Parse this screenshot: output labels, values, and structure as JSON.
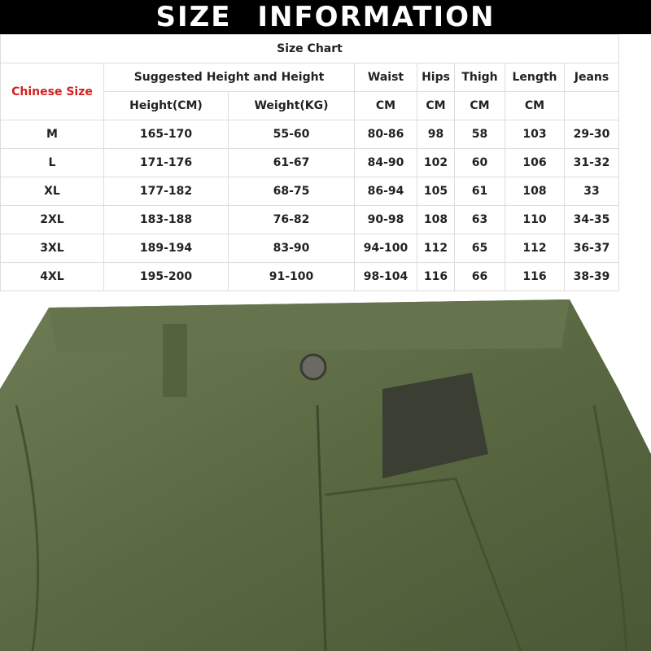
{
  "banner": {
    "title": "SIZE INFORMATION"
  },
  "table": {
    "title": "Size Chart",
    "size_header": "Chinese Size",
    "group_header": "Suggested Height and Height",
    "columns": [
      "Waist",
      "Hips",
      "Thigh",
      "Length",
      "Jeans"
    ],
    "units": [
      "Height(CM)",
      "Weight(KG)",
      "CM",
      "CM",
      "CM",
      "CM",
      ""
    ],
    "rows": [
      [
        "M",
        "165-170",
        "55-60",
        "80-86",
        "98",
        "58",
        "103",
        "29-30"
      ],
      [
        "L",
        "171-176",
        "61-67",
        "84-90",
        "102",
        "60",
        "106",
        "31-32"
      ],
      [
        "XL",
        "177-182",
        "68-75",
        "86-94",
        "105",
        "61",
        "108",
        "33"
      ],
      [
        "2XL",
        "183-188",
        "76-82",
        "90-98",
        "108",
        "63",
        "110",
        "34-35"
      ],
      [
        "3XL",
        "189-194",
        "83-90",
        "94-100",
        "112",
        "65",
        "112",
        "36-37"
      ],
      [
        "4XL",
        "195-200",
        "91-100",
        "98-104",
        "116",
        "66",
        "116",
        "38-39"
      ]
    ]
  },
  "colors": {
    "size_header": "#d42020",
    "fabric": "#5c6b45"
  }
}
